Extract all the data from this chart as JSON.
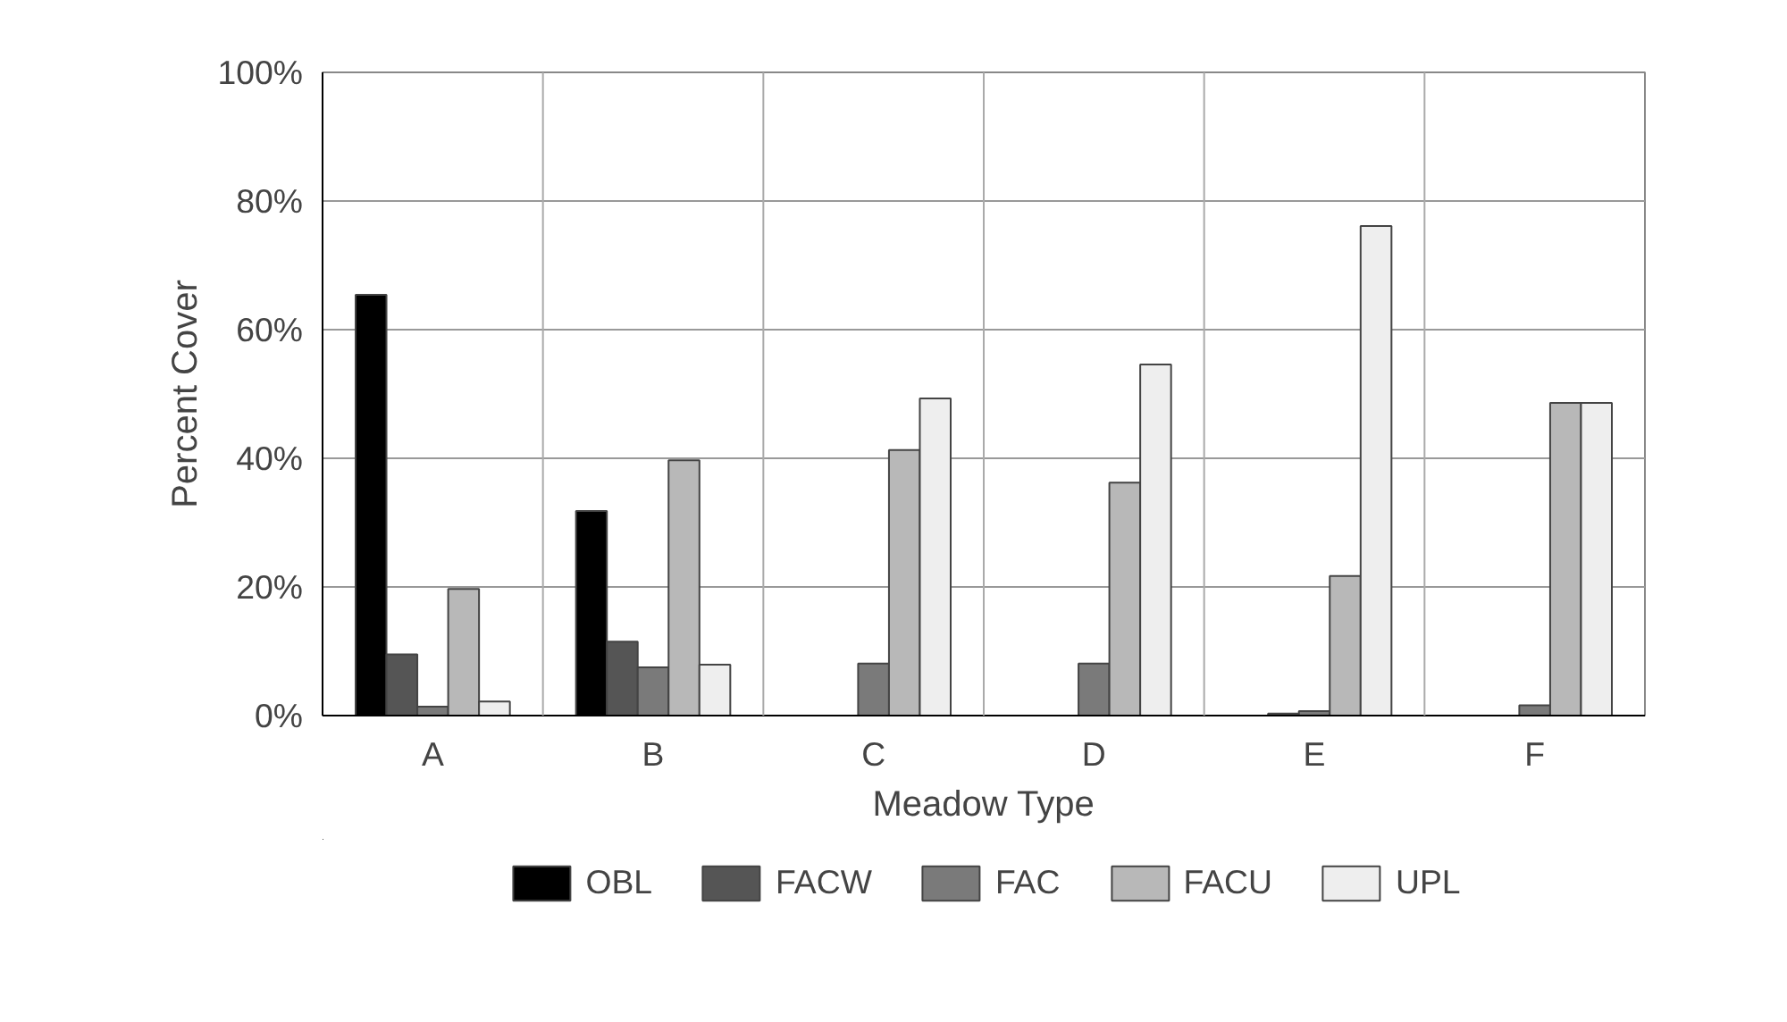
{
  "chart_data": {
    "type": "bar",
    "xlabel": "Meadow Type",
    "ylabel": "Percent Cover",
    "categories": [
      "A",
      "B",
      "C",
      "D",
      "E",
      "F"
    ],
    "series": [
      {
        "name": "OBL",
        "color": "#000000",
        "values": [
          65.4,
          31.8,
          0,
          0,
          0,
          0
        ]
      },
      {
        "name": "FACW",
        "color": "#555555",
        "values": [
          9.5,
          11.5,
          null,
          0,
          0.3,
          null
        ]
      },
      {
        "name": "FAC",
        "color": "#7a7a7a",
        "values": [
          1.4,
          7.5,
          8.1,
          8.1,
          0.7,
          1.6
        ]
      },
      {
        "name": "FACU",
        "color": "#b8b8b8",
        "values": [
          19.7,
          39.7,
          41.3,
          36.2,
          21.7,
          48.6
        ]
      },
      {
        "name": "UPL",
        "color": "#eeeeee",
        "values": [
          2.2,
          7.9,
          49.3,
          54.6,
          76.1,
          48.6
        ]
      }
    ],
    "ylim": [
      0,
      100
    ],
    "yticks": [
      {
        "value": 0,
        "label": "0%"
      },
      {
        "value": 20,
        "label": "20%"
      },
      {
        "value": 40,
        "label": "40%"
      },
      {
        "value": 60,
        "label": "60%"
      },
      {
        "value": 80,
        "label": "80%"
      },
      {
        "value": 100,
        "label": "100%"
      }
    ],
    "grid": true,
    "legend": "bottom"
  }
}
